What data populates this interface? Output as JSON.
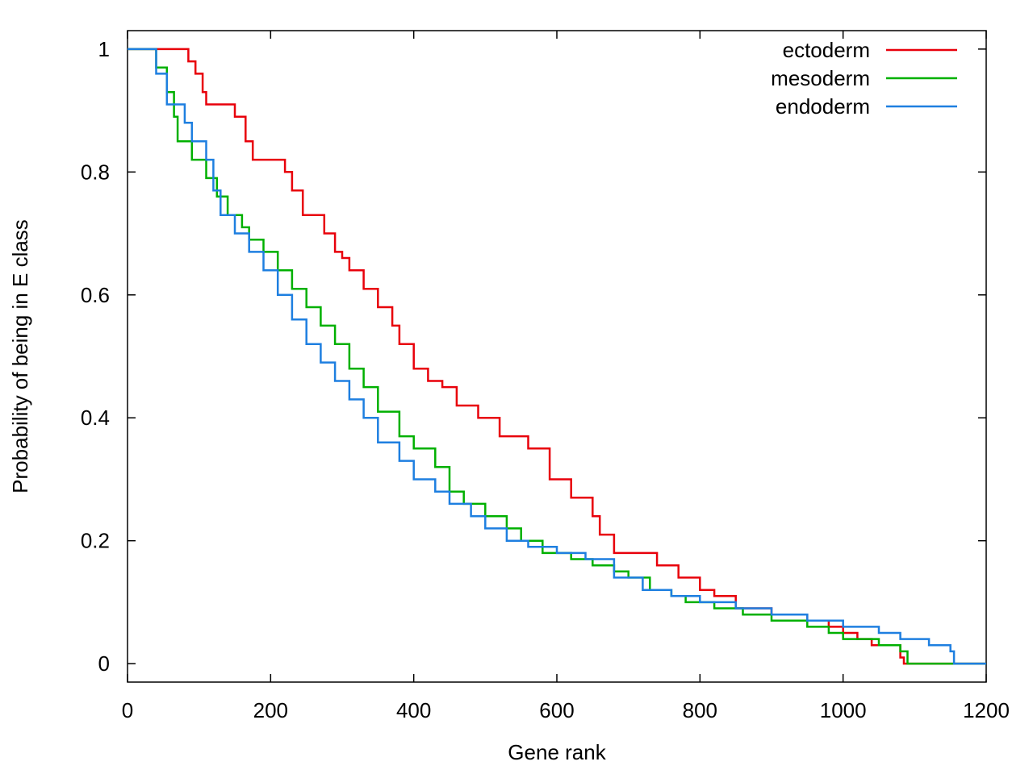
{
  "chart_data": {
    "type": "line",
    "xlabel": "Gene rank",
    "ylabel": "Probability of being in E class",
    "xlim": [
      0,
      1200
    ],
    "ylim": [
      -0.03,
      1.03
    ],
    "x_ticks": [
      0,
      200,
      400,
      600,
      800,
      1000,
      1200
    ],
    "y_ticks": [
      0,
      0.2,
      0.4,
      0.6,
      0.8,
      1
    ],
    "x_tick_labels": [
      "0",
      "200",
      "400",
      "600",
      "800",
      "1000",
      "1200"
    ],
    "y_tick_labels": [
      "0",
      "0.2",
      "0.4",
      "0.6",
      "0.8",
      "1"
    ],
    "grid": false,
    "legend_position": "top-right",
    "series": [
      {
        "name": "ectoderm",
        "color": "#e8000b",
        "x": [
          0,
          80,
          85,
          95,
          105,
          110,
          150,
          165,
          175,
          220,
          230,
          245,
          275,
          290,
          300,
          310,
          330,
          350,
          370,
          380,
          400,
          420,
          440,
          460,
          490,
          520,
          560,
          590,
          620,
          650,
          660,
          680,
          720,
          740,
          770,
          800,
          820,
          850,
          900,
          950,
          980,
          1000,
          1020,
          1040,
          1080,
          1085,
          1200
        ],
        "y": [
          1,
          1,
          0.98,
          0.96,
          0.93,
          0.91,
          0.89,
          0.85,
          0.82,
          0.8,
          0.77,
          0.73,
          0.7,
          0.67,
          0.66,
          0.64,
          0.61,
          0.58,
          0.55,
          0.52,
          0.48,
          0.46,
          0.45,
          0.42,
          0.4,
          0.37,
          0.35,
          0.3,
          0.27,
          0.24,
          0.21,
          0.18,
          0.18,
          0.16,
          0.14,
          0.12,
          0.11,
          0.09,
          0.08,
          0.07,
          0.06,
          0.05,
          0.04,
          0.03,
          0.01,
          0,
          0
        ]
      },
      {
        "name": "mesoderm",
        "color": "#00b000",
        "x": [
          0,
          30,
          40,
          55,
          65,
          70,
          90,
          110,
          125,
          140,
          160,
          170,
          190,
          210,
          230,
          250,
          270,
          290,
          310,
          330,
          350,
          380,
          400,
          430,
          450,
          470,
          500,
          530,
          550,
          580,
          620,
          650,
          680,
          700,
          730,
          760,
          780,
          820,
          860,
          900,
          950,
          980,
          1000,
          1050,
          1080,
          1090,
          1200
        ],
        "y": [
          1,
          1,
          0.97,
          0.93,
          0.89,
          0.85,
          0.82,
          0.79,
          0.76,
          0.73,
          0.71,
          0.69,
          0.67,
          0.64,
          0.61,
          0.58,
          0.55,
          0.52,
          0.48,
          0.45,
          0.41,
          0.37,
          0.35,
          0.32,
          0.28,
          0.26,
          0.24,
          0.22,
          0.2,
          0.18,
          0.17,
          0.16,
          0.15,
          0.14,
          0.12,
          0.11,
          0.1,
          0.09,
          0.08,
          0.07,
          0.06,
          0.05,
          0.04,
          0.03,
          0.02,
          0,
          0
        ]
      },
      {
        "name": "endoderm",
        "color": "#1e7fe0",
        "x": [
          0,
          30,
          40,
          55,
          70,
          80,
          90,
          110,
          120,
          130,
          150,
          170,
          190,
          210,
          230,
          250,
          270,
          290,
          310,
          330,
          350,
          380,
          400,
          430,
          450,
          480,
          500,
          530,
          560,
          600,
          640,
          680,
          720,
          760,
          800,
          850,
          900,
          950,
          1000,
          1050,
          1080,
          1120,
          1150,
          1155,
          1200
        ],
        "y": [
          1,
          1,
          0.96,
          0.91,
          0.91,
          0.88,
          0.85,
          0.82,
          0.77,
          0.73,
          0.7,
          0.67,
          0.64,
          0.6,
          0.56,
          0.52,
          0.49,
          0.46,
          0.43,
          0.4,
          0.36,
          0.33,
          0.3,
          0.28,
          0.26,
          0.24,
          0.22,
          0.2,
          0.19,
          0.18,
          0.17,
          0.14,
          0.12,
          0.11,
          0.1,
          0.09,
          0.08,
          0.07,
          0.06,
          0.05,
          0.04,
          0.03,
          0.02,
          0,
          0
        ]
      }
    ]
  }
}
